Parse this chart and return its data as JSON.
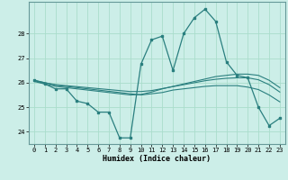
{
  "title": "",
  "xlabel": "Humidex (Indice chaleur)",
  "background_color": "#cceee8",
  "grid_color": "#aaddcc",
  "line_color": "#2a7f7f",
  "x": [
    0,
    1,
    2,
    3,
    4,
    5,
    6,
    7,
    8,
    9,
    10,
    11,
    12,
    13,
    14,
    15,
    16,
    17,
    18,
    19,
    20,
    21,
    22,
    23
  ],
  "line1": [
    26.1,
    25.95,
    25.75,
    25.75,
    25.25,
    25.15,
    24.8,
    24.8,
    23.75,
    23.75,
    26.75,
    27.75,
    27.9,
    26.5,
    28.0,
    28.65,
    29.0,
    28.5,
    26.85,
    26.3,
    26.2,
    25.0,
    24.25,
    24.55
  ],
  "line2": [
    26.05,
    25.95,
    25.85,
    25.8,
    25.75,
    25.7,
    25.65,
    25.6,
    25.55,
    25.5,
    25.52,
    25.62,
    25.75,
    25.85,
    25.95,
    26.05,
    26.15,
    26.25,
    26.3,
    26.35,
    26.35,
    26.3,
    26.1,
    25.8
  ],
  "line3": [
    26.1,
    26.0,
    25.92,
    25.88,
    25.84,
    25.8,
    25.76,
    25.72,
    25.68,
    25.64,
    25.64,
    25.68,
    25.76,
    25.84,
    25.92,
    26.0,
    26.08,
    26.14,
    26.18,
    26.2,
    26.2,
    26.12,
    25.92,
    25.62
  ],
  "line4": [
    26.1,
    26.0,
    25.9,
    25.85,
    25.8,
    25.75,
    25.7,
    25.65,
    25.6,
    25.55,
    25.5,
    25.55,
    25.6,
    25.7,
    25.75,
    25.8,
    25.85,
    25.88,
    25.88,
    25.88,
    25.82,
    25.72,
    25.5,
    25.22
  ],
  "ylim": [
    23.5,
    29.3
  ],
  "yticks": [
    24,
    25,
    26,
    27,
    28
  ],
  "xticks": [
    0,
    1,
    2,
    3,
    4,
    5,
    6,
    7,
    8,
    9,
    10,
    11,
    12,
    13,
    14,
    15,
    16,
    17,
    18,
    19,
    20,
    21,
    22,
    23
  ]
}
